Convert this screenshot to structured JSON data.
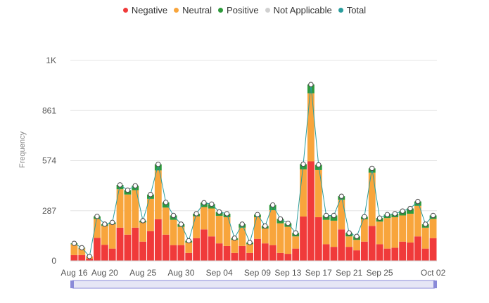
{
  "chart_data": {
    "type": "bar",
    "stacked": true,
    "ylabel": "Frequency",
    "yticks": [
      "0",
      "287",
      "574",
      "861",
      "1K"
    ],
    "ytick_values": [
      0,
      287,
      574,
      861,
      1148
    ],
    "ylim": [
      0,
      1148
    ],
    "grid": true,
    "legend_position": "top-center",
    "legend": [
      {
        "name": "Negative",
        "color": "#f03a3a"
      },
      {
        "name": "Neutral",
        "color": "#f8a53c"
      },
      {
        "name": "Positive",
        "color": "#2e9a3b"
      },
      {
        "name": "Not Applicable",
        "color": "#d0d0d0"
      },
      {
        "name": "Total",
        "color": "#2a9d9d"
      }
    ],
    "x_start": "2023-08-16",
    "x_end": "2023-10-02",
    "xtick_labels": [
      "Aug 16",
      "Aug 20",
      "Aug 25",
      "Aug 30",
      "Sep 04",
      "Sep 09",
      "Sep 13",
      "Sep 17",
      "Sep 21",
      "Sep 25",
      "Oct 02"
    ],
    "xtick_positions": [
      "2023-08-16",
      "2023-08-20",
      "2023-08-25",
      "2023-08-30",
      "2023-09-04",
      "2023-09-09",
      "2023-09-13",
      "2023-09-17",
      "2023-09-21",
      "2023-09-25",
      "2023-10-02"
    ],
    "categories": [
      "2023-08-16",
      "2023-08-17",
      "2023-08-18",
      "2023-08-19",
      "2023-08-20",
      "2023-08-21",
      "2023-08-22",
      "2023-08-23",
      "2023-08-24",
      "2023-08-25",
      "2023-08-26",
      "2023-08-27",
      "2023-08-28",
      "2023-08-29",
      "2023-08-30",
      "2023-08-31",
      "2023-09-01",
      "2023-09-02",
      "2023-09-03",
      "2023-09-04",
      "2023-09-05",
      "2023-09-06",
      "2023-09-07",
      "2023-09-08",
      "2023-09-09",
      "2023-09-10",
      "2023-09-11",
      "2023-09-12",
      "2023-09-13",
      "2023-09-14",
      "2023-09-15",
      "2023-09-16",
      "2023-09-17",
      "2023-09-18",
      "2023-09-19",
      "2023-09-20",
      "2023-09-21",
      "2023-09-22",
      "2023-09-23",
      "2023-09-24",
      "2023-09-25",
      "2023-09-26",
      "2023-09-27",
      "2023-09-28",
      "2023-09-29",
      "2023-09-30",
      "2023-10-01",
      "2023-10-02"
    ],
    "series": [
      {
        "name": "Negative",
        "color": "#f03a3a",
        "values": [
          33,
          33,
          12,
          132,
          92,
          70,
          190,
          150,
          190,
          110,
          170,
          238,
          150,
          90,
          90,
          45,
          130,
          180,
          140,
          100,
          85,
          45,
          85,
          45,
          126,
          100,
          90,
          45,
          40,
          70,
          254,
          570,
          250,
          95,
          80,
          180,
          80,
          60,
          110,
          200,
          95,
          70,
          75,
          110,
          105,
          140,
          70,
          130
        ]
      },
      {
        "name": "Neutral",
        "color": "#f8a53c",
        "values": [
          62,
          38,
          12,
          108,
          108,
          140,
          220,
          230,
          215,
          110,
          185,
          280,
          155,
          145,
          105,
          60,
          125,
          128,
          160,
          158,
          165,
          75,
          105,
          50,
          124,
          85,
          200,
          170,
          155,
          70,
          270,
          390,
          270,
          140,
          150,
          170,
          60,
          60,
          128,
          305,
          130,
          175,
          175,
          150,
          165,
          175,
          120,
          110
        ]
      },
      {
        "name": "Positive",
        "color": "#2e9a3b",
        "values": [
          5,
          4,
          1,
          15,
          10,
          10,
          25,
          25,
          25,
          10,
          25,
          35,
          30,
          25,
          15,
          10,
          15,
          25,
          25,
          22,
          20,
          10,
          20,
          10,
          15,
          15,
          30,
          25,
          20,
          20,
          30,
          50,
          30,
          25,
          30,
          20,
          20,
          20,
          15,
          25,
          20,
          20,
          20,
          25,
          30,
          25,
          20,
          20
        ]
      },
      {
        "name": "Not Applicable",
        "color": "#d0d0d0",
        "values": [
          0,
          0,
          0,
          0,
          0,
          0,
          0,
          0,
          0,
          0,
          0,
          0,
          0,
          0,
          0,
          0,
          0,
          0,
          0,
          0,
          0,
          0,
          0,
          0,
          0,
          0,
          0,
          0,
          0,
          0,
          0,
          0,
          0,
          0,
          0,
          0,
          0,
          0,
          0,
          0,
          0,
          0,
          0,
          0,
          0,
          0,
          0,
          0
        ]
      },
      {
        "name": "Total",
        "color": "#2a9d9d",
        "values": [
          100,
          75,
          25,
          255,
          210,
          220,
          435,
          405,
          430,
          230,
          380,
          553,
          335,
          260,
          210,
          115,
          270,
          333,
          325,
          280,
          270,
          130,
          210,
          105,
          265,
          200,
          320,
          240,
          215,
          160,
          554,
          1010,
          550,
          260,
          260,
          370,
          160,
          140,
          253,
          530,
          245,
          265,
          270,
          285,
          300,
          340,
          210,
          260
        ]
      }
    ]
  }
}
